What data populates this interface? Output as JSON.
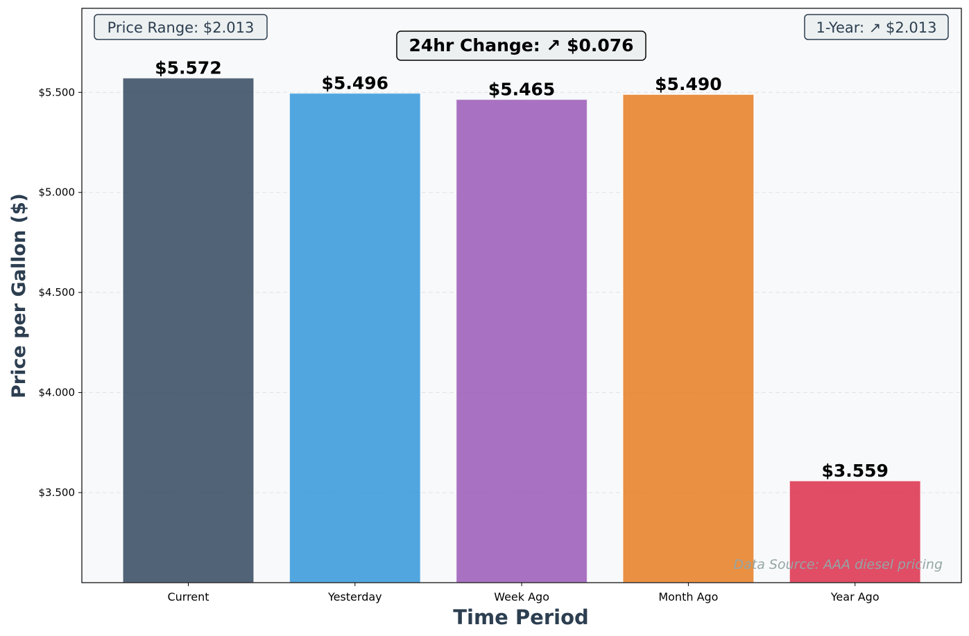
{
  "chart_data": {
    "type": "bar",
    "categories": [
      "Current",
      "Yesterday",
      "Week Ago",
      "Month Ago",
      "Year Ago"
    ],
    "values": [
      5.572,
      5.496,
      5.465,
      5.49,
      3.559
    ],
    "value_labels": [
      "$5.572",
      "$5.496",
      "$5.465",
      "$5.490",
      "$3.559"
    ],
    "bar_colors": [
      "#34495e",
      "#3498db",
      "#9b59b6",
      "#e67e22",
      "#dc2f4a"
    ],
    "xlabel": "Time Period",
    "ylabel": "Price per Gallon ($)",
    "ylim": [
      3.05,
      5.92
    ],
    "yticks": [
      3.5,
      4.0,
      4.5,
      5.0,
      5.5
    ],
    "ytick_labels": [
      "$3.500",
      "$4.000",
      "$4.500",
      "$5.000",
      "$5.500"
    ],
    "grid": true,
    "annotations": {
      "price_range": "Price Range: $2.013",
      "change_24hr": "24hr Change: ↗ $0.076",
      "one_year": "1-Year: ↗ $2.013",
      "source": "Data Source: AAA diesel pricing"
    },
    "colors": {
      "plot_background": "#f8f9fa",
      "axis_label": "#2c3e50",
      "annotation_text": "#2c3e50",
      "source_text": "#95a5a6"
    }
  }
}
